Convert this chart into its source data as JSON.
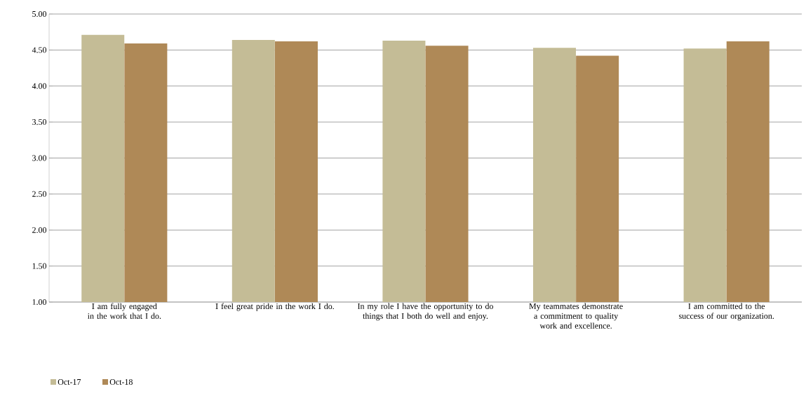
{
  "chart_data": {
    "type": "bar",
    "categories": [
      "I am fully engaged in the work that I do.",
      "I feel great pride in the work I do.",
      "In my role I have the opportunity to do things that I both do well and enjoy.",
      "My teammates demonstrate a commitment to quality work and excellence.",
      "I am committed to the success of our organization."
    ],
    "series": [
      {
        "name": "Oct-17",
        "color": "#c4bc96",
        "values": [
          4.71,
          4.64,
          4.63,
          4.53,
          4.52
        ]
      },
      {
        "name": "Oct-18",
        "color": "#af8957",
        "values": [
          4.59,
          4.62,
          4.56,
          4.42,
          4.62
        ]
      }
    ],
    "ylim": [
      1,
      5
    ],
    "yticks": [
      {
        "value": 1,
        "label": "1.00"
      },
      {
        "value": 1.5,
        "label": "1.50"
      },
      {
        "value": 2,
        "label": "2.00"
      },
      {
        "value": 2.5,
        "label": "2.50"
      },
      {
        "value": 3,
        "label": "3.00"
      },
      {
        "value": 3.5,
        "label": "3.50"
      },
      {
        "value": 4,
        "label": "4.00"
      },
      {
        "value": 4.5,
        "label": "4.50"
      },
      {
        "value": 5,
        "label": "5.00"
      }
    ],
    "grid": "y",
    "legend": "bottom left"
  }
}
